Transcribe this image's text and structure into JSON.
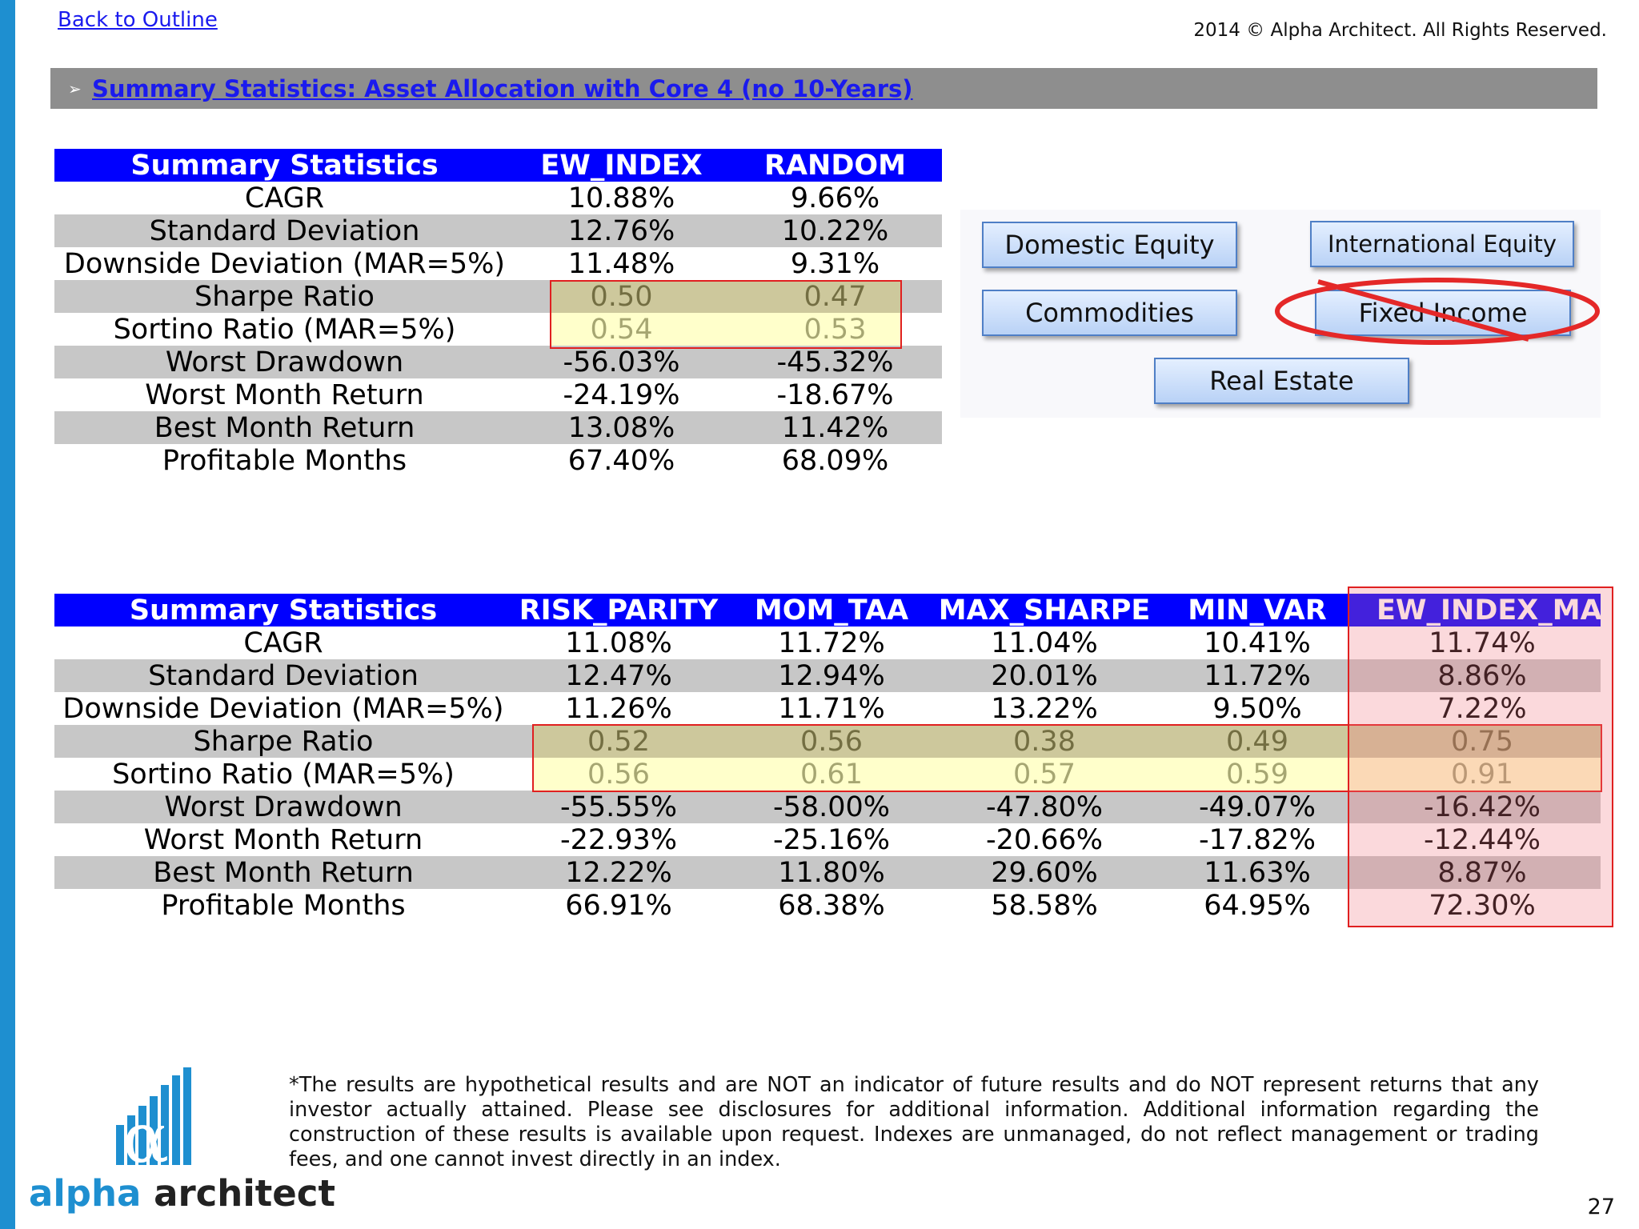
{
  "header": {
    "back_link": "Back to Outline",
    "copyright": "2014 © Alpha Architect. All Rights Reserved."
  },
  "title_bar": {
    "title": "Summary Statistics: Asset Allocation with Core 4 (no 10-Years)"
  },
  "table1": {
    "headers": [
      "Summary Statistics",
      "EW_INDEX",
      "RANDOM"
    ],
    "rows": [
      [
        "CAGR",
        "10.88%",
        "9.66%"
      ],
      [
        "Standard Deviation",
        "12.76%",
        "10.22%"
      ],
      [
        "Downside Deviation (MAR=5%)",
        "11.48%",
        "9.31%"
      ],
      [
        "Sharpe Ratio",
        "0.50",
        "0.47"
      ],
      [
        "Sortino Ratio (MAR=5%)",
        "0.54",
        "0.53"
      ],
      [
        "Worst Drawdown",
        "-56.03%",
        "-45.32%"
      ],
      [
        "Worst Month Return",
        "-24.19%",
        "-18.67%"
      ],
      [
        "Best Month Return",
        "13.08%",
        "11.42%"
      ],
      [
        "Profitable Months",
        "67.40%",
        "68.09%"
      ]
    ]
  },
  "table2": {
    "headers": [
      "Summary Statistics",
      "RISK_PARITY",
      "MOM_TAA",
      "MAX_SHARPE",
      "MIN_VAR",
      "EW_INDEX_MA"
    ],
    "rows": [
      [
        "CAGR",
        "11.08%",
        "11.72%",
        "11.04%",
        "10.41%",
        "11.74%"
      ],
      [
        "Standard Deviation",
        "12.47%",
        "12.94%",
        "20.01%",
        "11.72%",
        "8.86%"
      ],
      [
        "Downside Deviation (MAR=5%)",
        "11.26%",
        "11.71%",
        "13.22%",
        "9.50%",
        "7.22%"
      ],
      [
        "Sharpe Ratio",
        "0.52",
        "0.56",
        "0.38",
        "0.49",
        "0.75"
      ],
      [
        "Sortino Ratio (MAR=5%)",
        "0.56",
        "0.61",
        "0.57",
        "0.59",
        "0.91"
      ],
      [
        "Worst Drawdown",
        "-55.55%",
        "-58.00%",
        "-47.80%",
        "-49.07%",
        "-16.42%"
      ],
      [
        "Worst Month Return",
        "-22.93%",
        "-25.16%",
        "-20.66%",
        "-17.82%",
        "-12.44%"
      ],
      [
        "Best Month Return",
        "12.22%",
        "11.80%",
        "29.60%",
        "11.63%",
        "8.87%"
      ],
      [
        "Profitable Months",
        "66.91%",
        "68.38%",
        "58.58%",
        "64.95%",
        "72.30%"
      ]
    ]
  },
  "asset_classes": {
    "domestic_equity": "Domestic Equity",
    "international_equity": "International Equity",
    "commodities": "Commodities",
    "fixed_income": "Fixed Income",
    "real_estate": "Real Estate",
    "excluded": "Fixed Income"
  },
  "footnote": "*The results are hypothetical results and are NOT an indicator of future results and do NOT represent returns that any investor actually attained. Please see disclosures for additional information. Additional information regarding the construction of these results is available upon request. Indexes are unmanaged, do not reflect management or trading fees, and one cannot invest directly in an index.",
  "logo": {
    "alpha": "alpha",
    "architect": "architect"
  },
  "page_number": "27",
  "colors": {
    "header_blue": "#0000ff",
    "link_blue": "#1a1aee",
    "row_shade": "#c7c7c7",
    "highlight_red": "#e02020",
    "accent_blue": "#1e8fd0"
  }
}
